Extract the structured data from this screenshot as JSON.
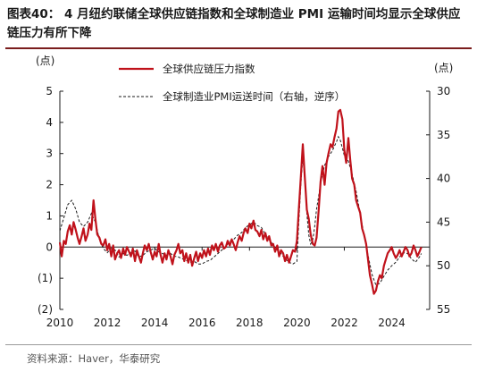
{
  "header": {
    "title": "图表40： 4 月纽约联储全球供应链指数和全球制造业 PMI 运输时间均显示全球供应链压力有所下降"
  },
  "footer": {
    "source": "资料来源：Haver，华泰研究"
  },
  "colors": {
    "gscpi": "#c0121b",
    "pmi": "#1a1a1a",
    "axis": "#1a1a1a",
    "accent_rule": "#7a1d1d"
  },
  "chart_data": {
    "type": "line",
    "left_unit": "(点)",
    "right_unit": "(点)",
    "xlim": [
      2010,
      2025.6
    ],
    "x_ticks": [
      "2010",
      "2012",
      "2014",
      "2016",
      "2018",
      "2020",
      "2022",
      "2024"
    ],
    "y_left": {
      "lim": [
        -2,
        5
      ],
      "ticks": [
        -2,
        -1,
        0,
        1,
        2,
        3,
        4,
        5
      ],
      "tick_labels": [
        "(2)",
        "(1)",
        "0",
        "1",
        "2",
        "3",
        "4",
        "5"
      ]
    },
    "y_right": {
      "lim": [
        30,
        55
      ],
      "inverted": true,
      "ticks": [
        30,
        35,
        40,
        45,
        50,
        55
      ],
      "tick_labels": [
        "30",
        "35",
        "40",
        "45",
        "50",
        "55"
      ]
    },
    "legend_placement": "top-center",
    "series": [
      {
        "name": "全球供应链压力指数",
        "axis": "left",
        "style": "solid",
        "points": [
          [
            2010.0,
            0.15
          ],
          [
            2010.08,
            -0.3
          ],
          [
            2010.17,
            0.2
          ],
          [
            2010.25,
            0.1
          ],
          [
            2010.33,
            0.5
          ],
          [
            2010.42,
            0.7
          ],
          [
            2010.5,
            0.4
          ],
          [
            2010.58,
            0.8
          ],
          [
            2010.67,
            0.55
          ],
          [
            2010.75,
            0.3
          ],
          [
            2010.83,
            0.1
          ],
          [
            2010.92,
            0.35
          ],
          [
            2011.0,
            0.6
          ],
          [
            2011.08,
            0.2
          ],
          [
            2011.17,
            0.4
          ],
          [
            2011.25,
            0.75
          ],
          [
            2011.33,
            0.55
          ],
          [
            2011.42,
            1.5
          ],
          [
            2011.5,
            0.9
          ],
          [
            2011.58,
            0.4
          ],
          [
            2011.67,
            0.3
          ],
          [
            2011.75,
            0.1
          ],
          [
            2011.83,
            0.05
          ],
          [
            2011.92,
            0.25
          ],
          [
            2012.0,
            -0.1
          ],
          [
            2012.08,
            0.1
          ],
          [
            2012.17,
            -0.3
          ],
          [
            2012.25,
            0.05
          ],
          [
            2012.33,
            -0.4
          ],
          [
            2012.42,
            -0.2
          ],
          [
            2012.5,
            -0.1
          ],
          [
            2012.58,
            -0.35
          ],
          [
            2012.67,
            -0.05
          ],
          [
            2012.75,
            -0.25
          ],
          [
            2012.83,
            0.0
          ],
          [
            2012.92,
            -0.15
          ],
          [
            2013.0,
            -0.3
          ],
          [
            2013.08,
            -0.05
          ],
          [
            2013.17,
            -0.45
          ],
          [
            2013.25,
            -0.1
          ],
          [
            2013.33,
            -0.3
          ],
          [
            2013.42,
            -0.5
          ],
          [
            2013.5,
            -0.2
          ],
          [
            2013.58,
            0.05
          ],
          [
            2013.67,
            -0.1
          ],
          [
            2013.75,
            0.1
          ],
          [
            2013.83,
            -0.15
          ],
          [
            2013.92,
            -0.4
          ],
          [
            2014.0,
            -0.15
          ],
          [
            2014.08,
            -0.3
          ],
          [
            2014.17,
            0.1
          ],
          [
            2014.25,
            -0.25
          ],
          [
            2014.33,
            -0.5
          ],
          [
            2014.42,
            -0.2
          ],
          [
            2014.5,
            -0.4
          ],
          [
            2014.58,
            -0.1
          ],
          [
            2014.67,
            -0.3
          ],
          [
            2014.75,
            -0.55
          ],
          [
            2014.83,
            -0.25
          ],
          [
            2014.92,
            -0.1
          ],
          [
            2015.0,
            0.1
          ],
          [
            2015.08,
            -0.2
          ],
          [
            2015.17,
            -0.1
          ],
          [
            2015.25,
            -0.45
          ],
          [
            2015.33,
            -0.2
          ],
          [
            2015.42,
            -0.5
          ],
          [
            2015.5,
            -0.25
          ],
          [
            2015.58,
            -0.6
          ],
          [
            2015.67,
            -0.35
          ],
          [
            2015.75,
            -0.15
          ],
          [
            2015.83,
            -0.45
          ],
          [
            2015.92,
            -0.2
          ],
          [
            2016.0,
            -0.35
          ],
          [
            2016.08,
            -0.1
          ],
          [
            2016.17,
            -0.3
          ],
          [
            2016.25,
            -0.05
          ],
          [
            2016.33,
            -0.25
          ],
          [
            2016.42,
            0.05
          ],
          [
            2016.5,
            -0.1
          ],
          [
            2016.58,
            0.1
          ],
          [
            2016.67,
            -0.15
          ],
          [
            2016.75,
            0.05
          ],
          [
            2016.83,
            0.15
          ],
          [
            2016.92,
            -0.05
          ],
          [
            2017.0,
            0.0
          ],
          [
            2017.08,
            0.2
          ],
          [
            2017.17,
            0.05
          ],
          [
            2017.25,
            0.25
          ],
          [
            2017.33,
            0.1
          ],
          [
            2017.42,
            -0.1
          ],
          [
            2017.5,
            0.15
          ],
          [
            2017.58,
            0.35
          ],
          [
            2017.67,
            0.2
          ],
          [
            2017.75,
            0.45
          ],
          [
            2017.83,
            0.6
          ],
          [
            2017.92,
            0.45
          ],
          [
            2018.0,
            0.75
          ],
          [
            2018.08,
            0.6
          ],
          [
            2018.17,
            0.85
          ],
          [
            2018.25,
            0.55
          ],
          [
            2018.33,
            0.5
          ],
          [
            2018.42,
            0.35
          ],
          [
            2018.5,
            0.55
          ],
          [
            2018.58,
            0.25
          ],
          [
            2018.67,
            0.45
          ],
          [
            2018.75,
            0.2
          ],
          [
            2018.83,
            0.35
          ],
          [
            2018.92,
            0.05
          ],
          [
            2019.0,
            0.1
          ],
          [
            2019.08,
            -0.15
          ],
          [
            2019.17,
            0.05
          ],
          [
            2019.25,
            -0.3
          ],
          [
            2019.33,
            -0.1
          ],
          [
            2019.42,
            -0.2
          ],
          [
            2019.5,
            -0.45
          ],
          [
            2019.58,
            -0.25
          ],
          [
            2019.67,
            -0.5
          ],
          [
            2019.75,
            -0.3
          ],
          [
            2019.83,
            -0.1
          ],
          [
            2019.92,
            -0.15
          ],
          [
            2020.0,
            0.2
          ],
          [
            2020.08,
            1.2
          ],
          [
            2020.17,
            2.3
          ],
          [
            2020.25,
            3.3
          ],
          [
            2020.33,
            2.3
          ],
          [
            2020.42,
            1.2
          ],
          [
            2020.5,
            0.9
          ],
          [
            2020.58,
            0.4
          ],
          [
            2020.67,
            0.1
          ],
          [
            2020.75,
            0.05
          ],
          [
            2020.83,
            0.3
          ],
          [
            2020.92,
            1.2
          ],
          [
            2021.0,
            2.1
          ],
          [
            2021.08,
            2.6
          ],
          [
            2021.17,
            2.0
          ],
          [
            2021.25,
            2.7
          ],
          [
            2021.33,
            3.0
          ],
          [
            2021.42,
            3.3
          ],
          [
            2021.5,
            3.2
          ],
          [
            2021.58,
            3.5
          ],
          [
            2021.67,
            3.8
          ],
          [
            2021.75,
            4.35
          ],
          [
            2021.83,
            4.4
          ],
          [
            2021.92,
            4.1
          ],
          [
            2022.0,
            3.1
          ],
          [
            2022.08,
            2.7
          ],
          [
            2022.17,
            3.5
          ],
          [
            2022.25,
            2.8
          ],
          [
            2022.33,
            2.2
          ],
          [
            2022.42,
            2.0
          ],
          [
            2022.5,
            1.5
          ],
          [
            2022.58,
            1.3
          ],
          [
            2022.67,
            1.1
          ],
          [
            2022.75,
            0.6
          ],
          [
            2022.83,
            0.4
          ],
          [
            2022.92,
            0.1
          ],
          [
            2023.0,
            -0.4
          ],
          [
            2023.08,
            -0.9
          ],
          [
            2023.17,
            -1.2
          ],
          [
            2023.25,
            -1.5
          ],
          [
            2023.33,
            -1.4
          ],
          [
            2023.42,
            -1.1
          ],
          [
            2023.5,
            -0.9
          ],
          [
            2023.58,
            -1.0
          ],
          [
            2023.67,
            -0.6
          ],
          [
            2023.75,
            -0.4
          ],
          [
            2023.83,
            -0.2
          ],
          [
            2023.92,
            -0.1
          ],
          [
            2024.0,
            0.0
          ],
          [
            2024.08,
            -0.2
          ],
          [
            2024.17,
            -0.35
          ],
          [
            2024.25,
            -0.25
          ],
          [
            2024.33,
            -0.1
          ],
          [
            2024.42,
            -0.3
          ],
          [
            2024.5,
            -0.15
          ],
          [
            2024.58,
            0.0
          ],
          [
            2024.67,
            -0.1
          ],
          [
            2024.75,
            -0.3
          ],
          [
            2024.83,
            -0.2
          ],
          [
            2024.92,
            0.05
          ],
          [
            2025.0,
            -0.1
          ],
          [
            2025.08,
            -0.3
          ],
          [
            2025.17,
            -0.15
          ],
          [
            2025.25,
            0.0
          ]
        ]
      },
      {
        "name": "全球制造业PMI运送时间（右轴，逆序）",
        "axis": "right",
        "style": "dashed",
        "points": [
          [
            2010.0,
            46.0
          ],
          [
            2010.17,
            44.5
          ],
          [
            2010.33,
            43.0
          ],
          [
            2010.5,
            42.5
          ],
          [
            2010.67,
            43.5
          ],
          [
            2010.83,
            45.0
          ],
          [
            2011.0,
            45.5
          ],
          [
            2011.17,
            45.0
          ],
          [
            2011.33,
            44.0
          ],
          [
            2011.5,
            45.0
          ],
          [
            2011.67,
            47.0
          ],
          [
            2011.83,
            48.0
          ],
          [
            2012.0,
            48.5
          ],
          [
            2012.17,
            48.0
          ],
          [
            2012.33,
            48.2
          ],
          [
            2012.5,
            49.0
          ],
          [
            2012.67,
            48.6
          ],
          [
            2012.83,
            48.8
          ],
          [
            2013.0,
            48.5
          ],
          [
            2013.17,
            48.3
          ],
          [
            2013.33,
            49.0
          ],
          [
            2013.5,
            48.8
          ],
          [
            2013.67,
            48.4
          ],
          [
            2013.83,
            48.2
          ],
          [
            2014.0,
            48.0
          ],
          [
            2014.17,
            48.4
          ],
          [
            2014.33,
            48.6
          ],
          [
            2014.5,
            48.8
          ],
          [
            2014.67,
            48.6
          ],
          [
            2014.83,
            48.9
          ],
          [
            2015.0,
            49.0
          ],
          [
            2015.17,
            49.2
          ],
          [
            2015.33,
            49.4
          ],
          [
            2015.5,
            49.6
          ],
          [
            2015.67,
            49.5
          ],
          [
            2015.83,
            49.8
          ],
          [
            2016.0,
            49.8
          ],
          [
            2016.17,
            49.5
          ],
          [
            2016.33,
            49.4
          ],
          [
            2016.5,
            49.0
          ],
          [
            2016.67,
            48.6
          ],
          [
            2016.83,
            48.2
          ],
          [
            2017.0,
            47.8
          ],
          [
            2017.17,
            47.2
          ],
          [
            2017.33,
            47.0
          ],
          [
            2017.5,
            46.5
          ],
          [
            2017.67,
            46.2
          ],
          [
            2017.83,
            45.6
          ],
          [
            2018.0,
            45.3
          ],
          [
            2018.17,
            45.0
          ],
          [
            2018.33,
            45.4
          ],
          [
            2018.5,
            45.6
          ],
          [
            2018.67,
            46.4
          ],
          [
            2018.83,
            47.0
          ],
          [
            2019.0,
            47.6
          ],
          [
            2019.17,
            48.2
          ],
          [
            2019.33,
            48.6
          ],
          [
            2019.5,
            49.2
          ],
          [
            2019.67,
            49.6
          ],
          [
            2019.83,
            49.8
          ],
          [
            2020.0,
            49.5
          ],
          [
            2020.08,
            45.0
          ],
          [
            2020.17,
            40.5
          ],
          [
            2020.25,
            37.5
          ],
          [
            2020.33,
            40.0
          ],
          [
            2020.42,
            44.0
          ],
          [
            2020.5,
            46.5
          ],
          [
            2020.58,
            47.5
          ],
          [
            2020.67,
            47.0
          ],
          [
            2020.75,
            45.5
          ],
          [
            2020.83,
            43.5
          ],
          [
            2020.92,
            42.0
          ],
          [
            2021.0,
            40.5
          ],
          [
            2021.17,
            38.5
          ],
          [
            2021.33,
            37.5
          ],
          [
            2021.5,
            36.8
          ],
          [
            2021.58,
            36.3
          ],
          [
            2021.67,
            35.8
          ],
          [
            2021.75,
            35.2
          ],
          [
            2021.83,
            35.6
          ],
          [
            2021.92,
            36.5
          ],
          [
            2022.0,
            37.4
          ],
          [
            2022.17,
            38.0
          ],
          [
            2022.33,
            39.5
          ],
          [
            2022.5,
            41.5
          ],
          [
            2022.67,
            44.0
          ],
          [
            2022.83,
            46.5
          ],
          [
            2023.0,
            48.8
          ],
          [
            2023.17,
            51.0
          ],
          [
            2023.33,
            52.2
          ],
          [
            2023.5,
            52.0
          ],
          [
            2023.67,
            51.2
          ],
          [
            2023.83,
            50.5
          ],
          [
            2024.0,
            50.0
          ],
          [
            2024.17,
            49.6
          ],
          [
            2024.33,
            49.0
          ],
          [
            2024.5,
            48.5
          ],
          [
            2024.67,
            48.6
          ],
          [
            2024.83,
            49.2
          ],
          [
            2025.0,
            49.6
          ],
          [
            2025.17,
            49.0
          ],
          [
            2025.25,
            48.6
          ]
        ]
      }
    ]
  }
}
